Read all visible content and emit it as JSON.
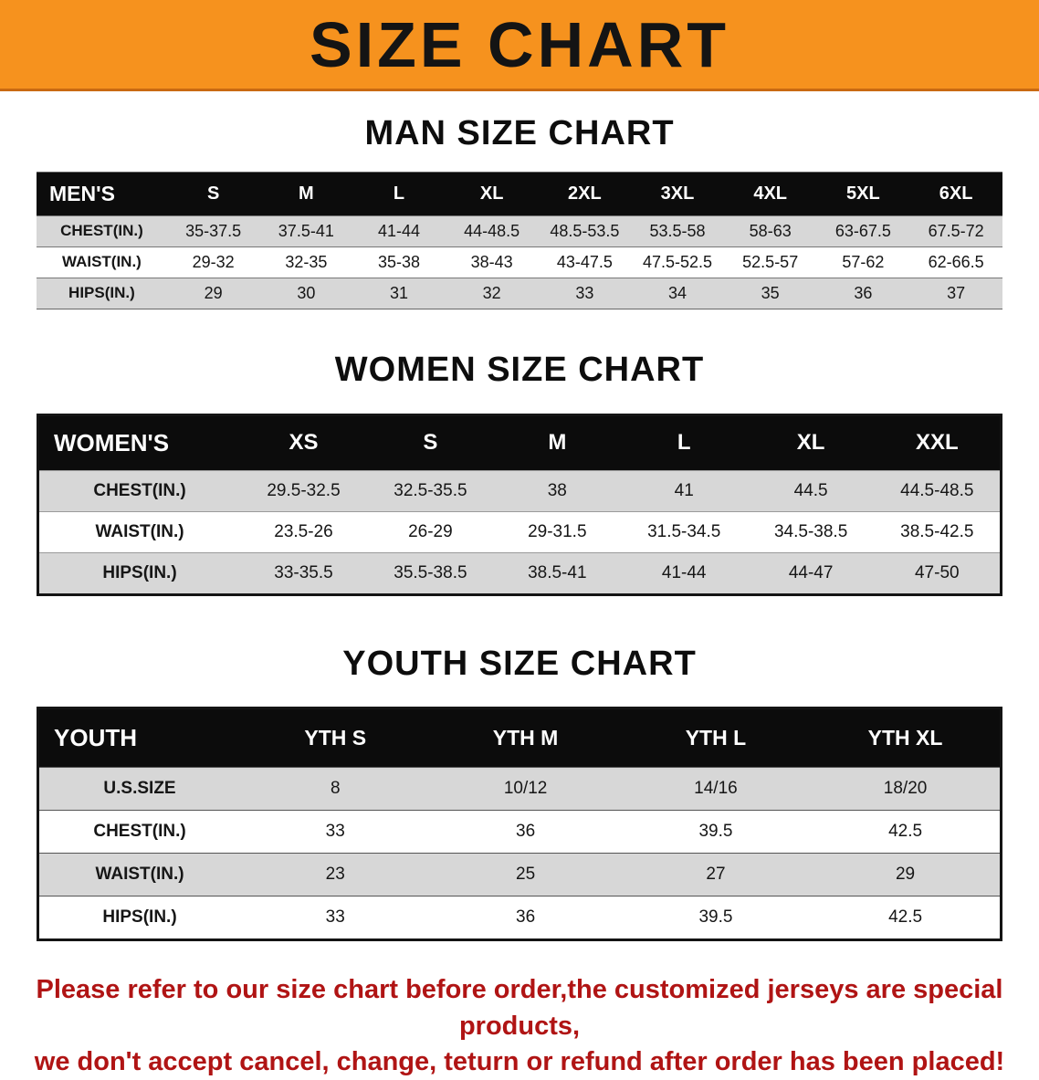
{
  "banner": {
    "title": "SIZE CHART"
  },
  "men": {
    "heading": "MAN SIZE CHART",
    "table": {
      "columns": [
        "MEN'S",
        "S",
        "M",
        "L",
        "XL",
        "2XL",
        "3XL",
        "4XL",
        "5XL",
        "6XL"
      ],
      "rows": [
        {
          "label": "CHEST(IN.)",
          "values": [
            "35-37.5",
            "37.5-41",
            "41-44",
            "44-48.5",
            "48.5-53.5",
            "53.5-58",
            "58-63",
            "63-67.5",
            "67.5-72"
          ]
        },
        {
          "label": "WAIST(IN.)",
          "values": [
            "29-32",
            "32-35",
            "35-38",
            "38-43",
            "43-47.5",
            "47.5-52.5",
            "52.5-57",
            "57-62",
            "62-66.5"
          ]
        },
        {
          "label": "HIPS(IN.)",
          "values": [
            "29",
            "30",
            "31",
            "32",
            "33",
            "34",
            "35",
            "36",
            "37"
          ]
        }
      ]
    }
  },
  "women": {
    "heading": "WOMEN SIZE CHART",
    "table": {
      "columns": [
        "WOMEN'S",
        "XS",
        "S",
        "M",
        "L",
        "XL",
        "XXL"
      ],
      "rows": [
        {
          "label": "CHEST(IN.)",
          "values": [
            "29.5-32.5",
            "32.5-35.5",
            "38",
            "41",
            "44.5",
            "44.5-48.5"
          ]
        },
        {
          "label": "WAIST(IN.)",
          "values": [
            "23.5-26",
            "26-29",
            "29-31.5",
            "31.5-34.5",
            "34.5-38.5",
            "38.5-42.5"
          ]
        },
        {
          "label": "HIPS(IN.)",
          "values": [
            "33-35.5",
            "35.5-38.5",
            "38.5-41",
            "41-44",
            "44-47",
            "47-50"
          ]
        }
      ]
    }
  },
  "youth": {
    "heading": "YOUTH SIZE CHART",
    "table": {
      "columns": [
        "YOUTH",
        "YTH S",
        "YTH M",
        "YTH L",
        "YTH XL"
      ],
      "rows": [
        {
          "label": "U.S.SIZE",
          "values": [
            "8",
            "10/12",
            "14/16",
            "18/20"
          ]
        },
        {
          "label": "CHEST(IN.)",
          "values": [
            "33",
            "36",
            "39.5",
            "42.5"
          ]
        },
        {
          "label": "WAIST(IN.)",
          "values": [
            "23",
            "25",
            "27",
            "29"
          ]
        },
        {
          "label": "HIPS(IN.)",
          "values": [
            "33",
            "36",
            "39.5",
            "42.5"
          ]
        }
      ]
    }
  },
  "disclaimer": {
    "line1": "Please refer to our size chart before order,the customized jerseys are special products,",
    "line2": "we don't accept cancel, change, teturn or refund after order has been placed!"
  },
  "colors": {
    "banner_orange": "#F6921E",
    "table_header_black": "#0C0C0C",
    "row_gray": "#D7D7D7",
    "disclaimer_red": "#B01414"
  }
}
